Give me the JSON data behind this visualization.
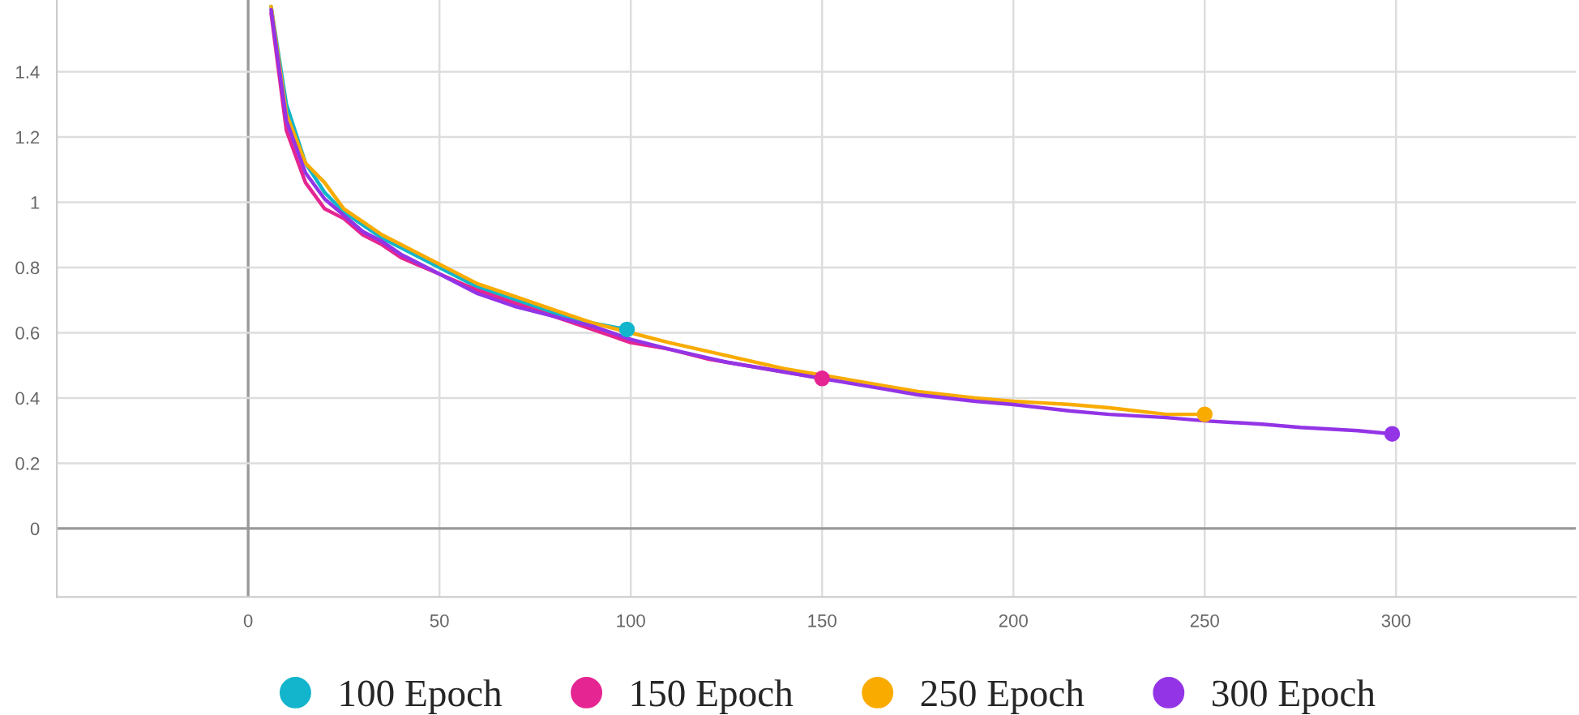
{
  "chart_data": {
    "type": "line",
    "xlim": [
      -50,
      347
    ],
    "ylim": [
      -0.21,
      1.62
    ],
    "xticks": [
      0,
      50,
      100,
      150,
      200,
      250,
      300
    ],
    "yticks": [
      0,
      0.2,
      0.4,
      0.6,
      0.8,
      1,
      1.2,
      1.4
    ],
    "grid": true,
    "legend": "bottom",
    "line_style": "solid",
    "series": [
      {
        "name": "100 Epoch",
        "color": "#12b5cb",
        "x": [
          6,
          10,
          15,
          20,
          25,
          30,
          35,
          40,
          50,
          60,
          70,
          80,
          90,
          99
        ],
        "values": [
          1.6,
          1.3,
          1.12,
          1.03,
          0.97,
          0.93,
          0.89,
          0.86,
          0.8,
          0.74,
          0.7,
          0.66,
          0.63,
          0.61
        ]
      },
      {
        "name": "150 Epoch",
        "color": "#e52592",
        "x": [
          6,
          10,
          15,
          20,
          25,
          30,
          35,
          40,
          50,
          60,
          70,
          80,
          90,
          100,
          110,
          120,
          130,
          140,
          150
        ],
        "values": [
          1.58,
          1.22,
          1.06,
          0.98,
          0.95,
          0.9,
          0.87,
          0.83,
          0.78,
          0.73,
          0.69,
          0.65,
          0.61,
          0.57,
          0.55,
          0.52,
          0.5,
          0.48,
          0.46
        ]
      },
      {
        "name": "250 Epoch",
        "color": "#f9ab00",
        "x": [
          6,
          10,
          15,
          20,
          25,
          30,
          35,
          40,
          50,
          60,
          70,
          80,
          90,
          100,
          110,
          125,
          140,
          150,
          165,
          175,
          190,
          200,
          215,
          225,
          240,
          250
        ],
        "values": [
          1.6,
          1.27,
          1.12,
          1.06,
          0.98,
          0.94,
          0.9,
          0.87,
          0.81,
          0.75,
          0.71,
          0.67,
          0.63,
          0.6,
          0.57,
          0.53,
          0.49,
          0.47,
          0.44,
          0.42,
          0.4,
          0.39,
          0.38,
          0.37,
          0.35,
          0.35
        ]
      },
      {
        "name": "300 Epoch",
        "color": "#9334e6",
        "x": [
          6,
          10,
          15,
          20,
          25,
          30,
          35,
          40,
          50,
          60,
          70,
          80,
          90,
          100,
          110,
          125,
          140,
          150,
          165,
          175,
          190,
          200,
          215,
          225,
          240,
          250,
          265,
          275,
          290,
          299
        ],
        "values": [
          1.59,
          1.25,
          1.09,
          1.01,
          0.96,
          0.91,
          0.88,
          0.84,
          0.78,
          0.72,
          0.68,
          0.65,
          0.62,
          0.58,
          0.55,
          0.51,
          0.48,
          0.46,
          0.43,
          0.41,
          0.39,
          0.38,
          0.36,
          0.35,
          0.34,
          0.33,
          0.32,
          0.31,
          0.3,
          0.29
        ]
      }
    ]
  }
}
